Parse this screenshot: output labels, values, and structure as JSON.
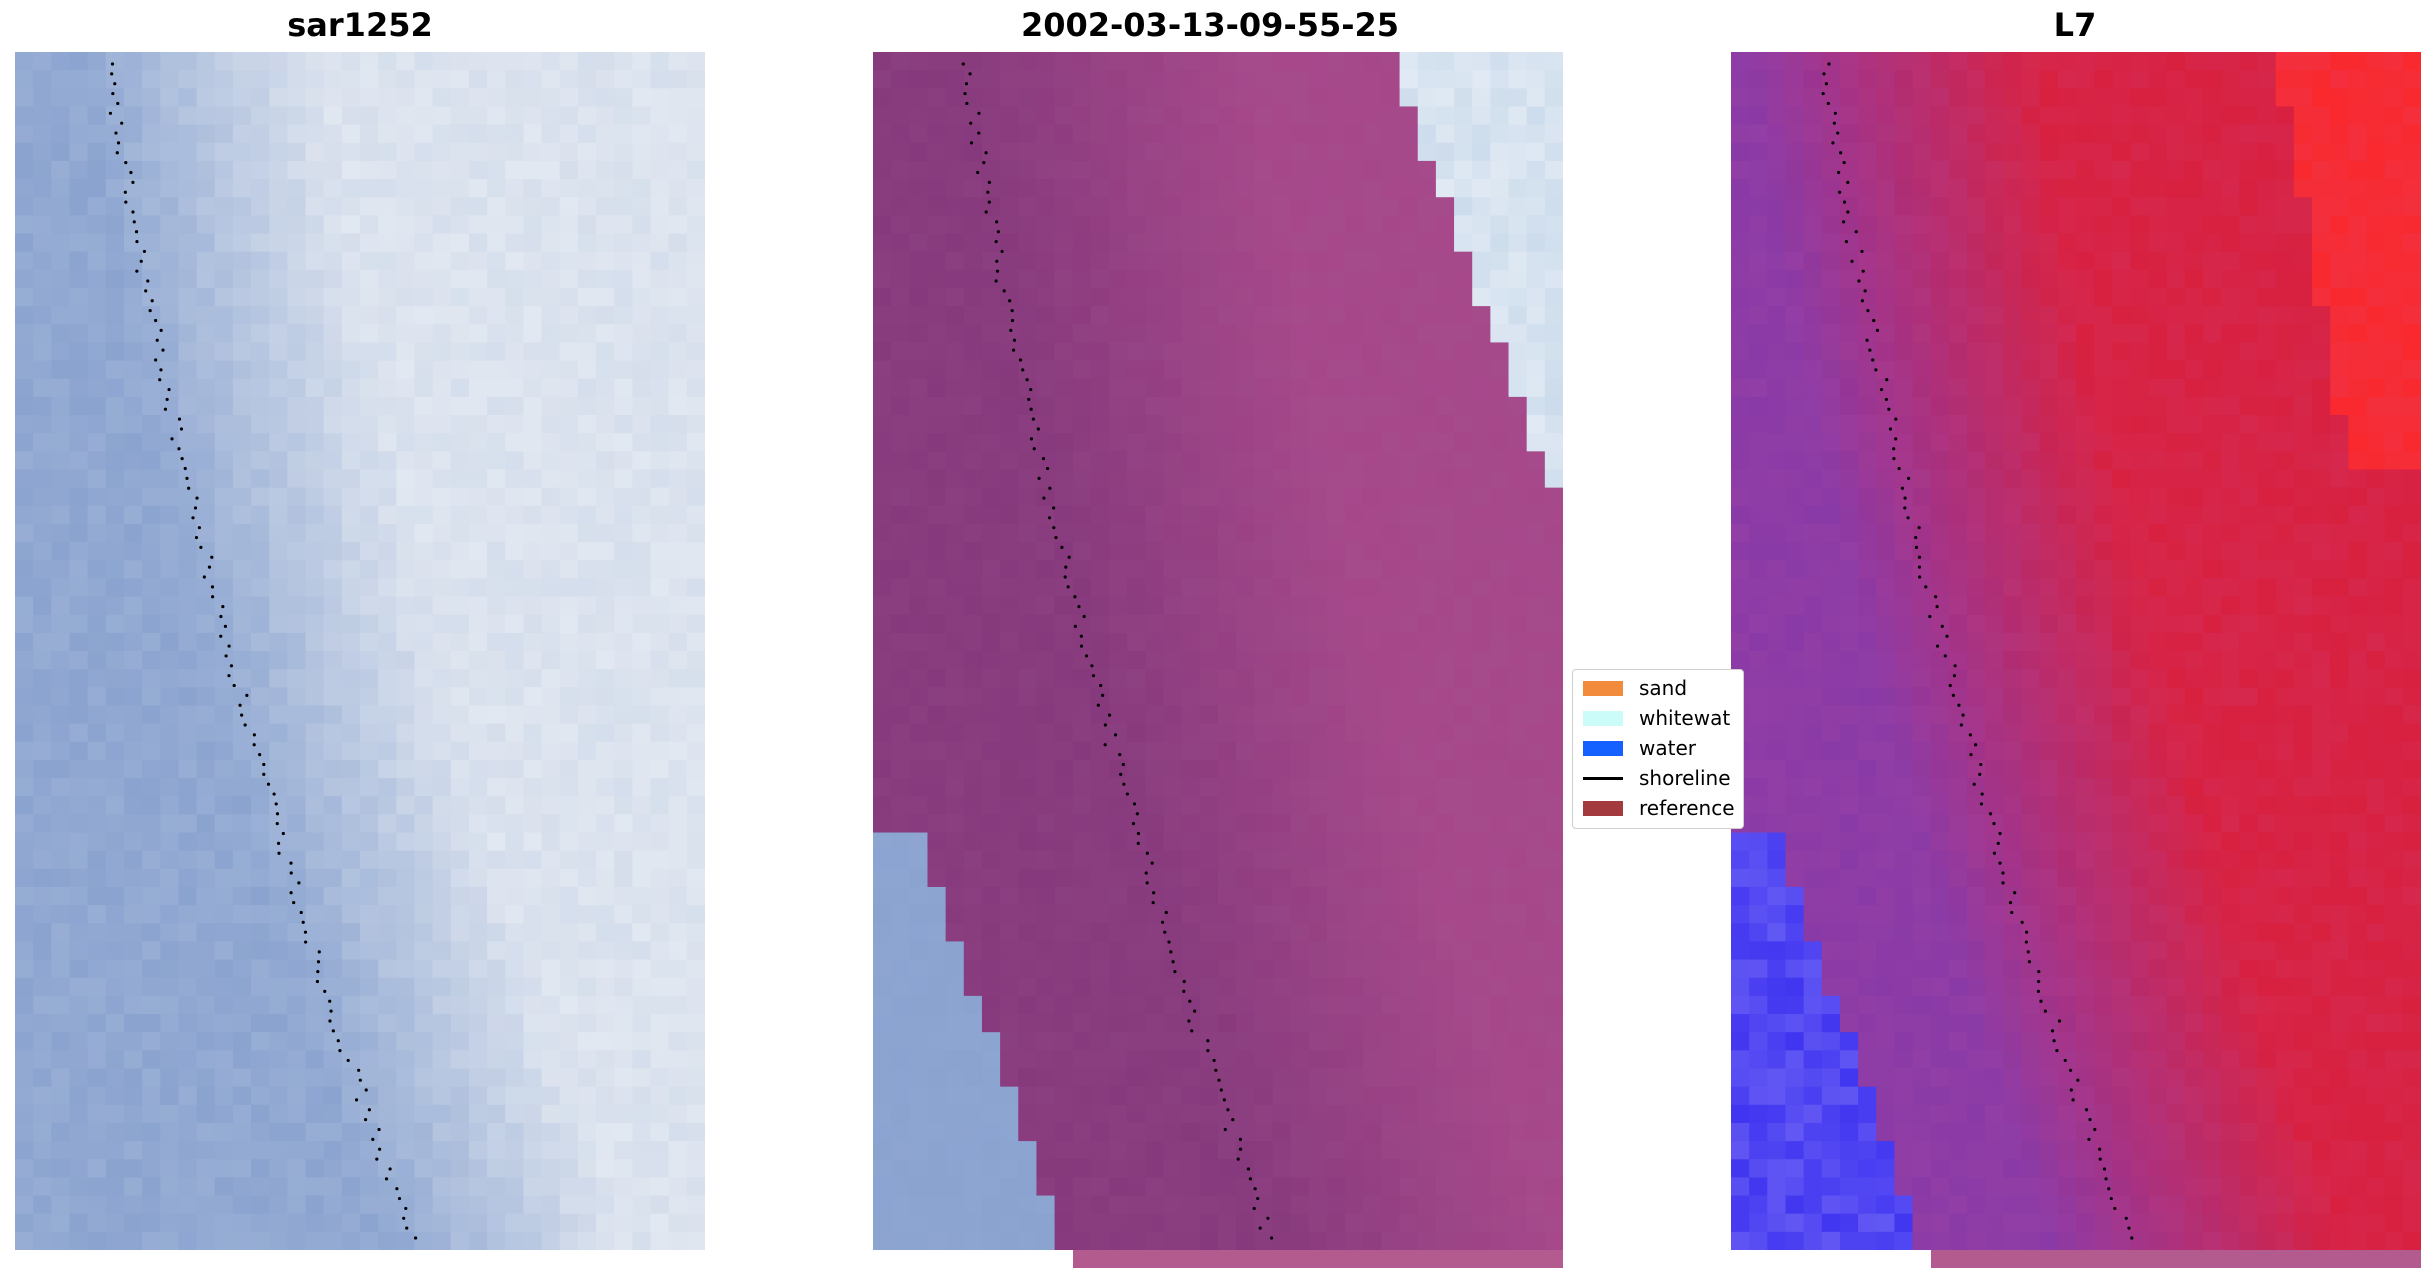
{
  "titles": {
    "panel1": "sar1252",
    "panel2": "2002-03-13-09-55-25",
    "panel3": "L7"
  },
  "legend": {
    "items": [
      {
        "label": "sand",
        "color": "#f28c3c",
        "kind": "patch"
      },
      {
        "label": "whitewat",
        "color": "#ccfcfa",
        "kind": "patch"
      },
      {
        "label": "water",
        "color": "#1561ff",
        "kind": "patch"
      },
      {
        "label": "shoreline",
        "color": "#000000",
        "kind": "line"
      },
      {
        "label": "reference",
        "color": "#a23a3e",
        "kind": "patch"
      }
    ]
  },
  "colors": {
    "rgb_water": "#8aa3cf",
    "rgb_surf": "#e2e8f1",
    "class_overlay": "#a6478a",
    "l7_blue": "#4035f0",
    "l7_purple": "#8a3aa6",
    "l7_red": "#d8203f",
    "l7_bright_red": "#ff2b2b",
    "shoreline": "#000000"
  }
}
